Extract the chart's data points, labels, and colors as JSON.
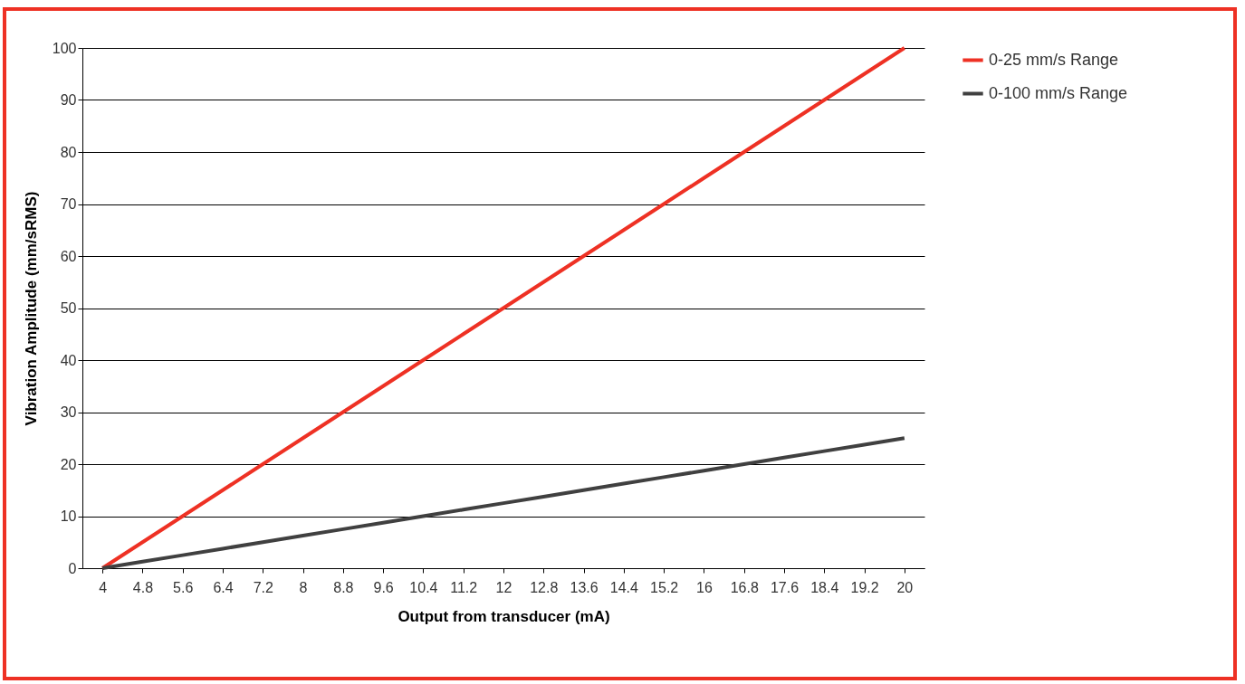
{
  "chart_data": {
    "type": "line",
    "xlabel": "Output from transducer (mA)",
    "ylabel": "Vibration Amplitude (mm/sRMS)",
    "categories": [
      "4",
      "4.8",
      "5.6",
      "6.4",
      "7.2",
      "8",
      "8.8",
      "9.6",
      "10.4",
      "11.2",
      "12",
      "12.8",
      "13.6",
      "14.4",
      "15.2",
      "16",
      "16.8",
      "17.6",
      "18.4",
      "19.2",
      "20"
    ],
    "series": [
      {
        "name": "0-25 mm/s Range",
        "color": "#ee3124",
        "values": [
          0,
          5,
          10,
          15,
          20,
          25,
          30,
          35,
          40,
          45,
          50,
          55,
          60,
          65,
          70,
          75,
          80,
          85,
          90,
          95,
          100
        ]
      },
      {
        "name": "0-100 mm/s Range",
        "color": "#404040",
        "values": [
          0,
          1.25,
          2.5,
          3.75,
          5,
          6.25,
          7.5,
          8.75,
          10,
          11.25,
          12.5,
          13.75,
          15,
          16.25,
          17.5,
          18.75,
          20,
          21.25,
          22.5,
          23.75,
          25
        ]
      }
    ],
    "ylim": [
      0,
      100
    ],
    "yticks": [
      0,
      10,
      20,
      30,
      40,
      50,
      60,
      70,
      80,
      90,
      100
    ],
    "grid": "y",
    "legend": "right",
    "marker": "none",
    "line_style": "solid"
  }
}
